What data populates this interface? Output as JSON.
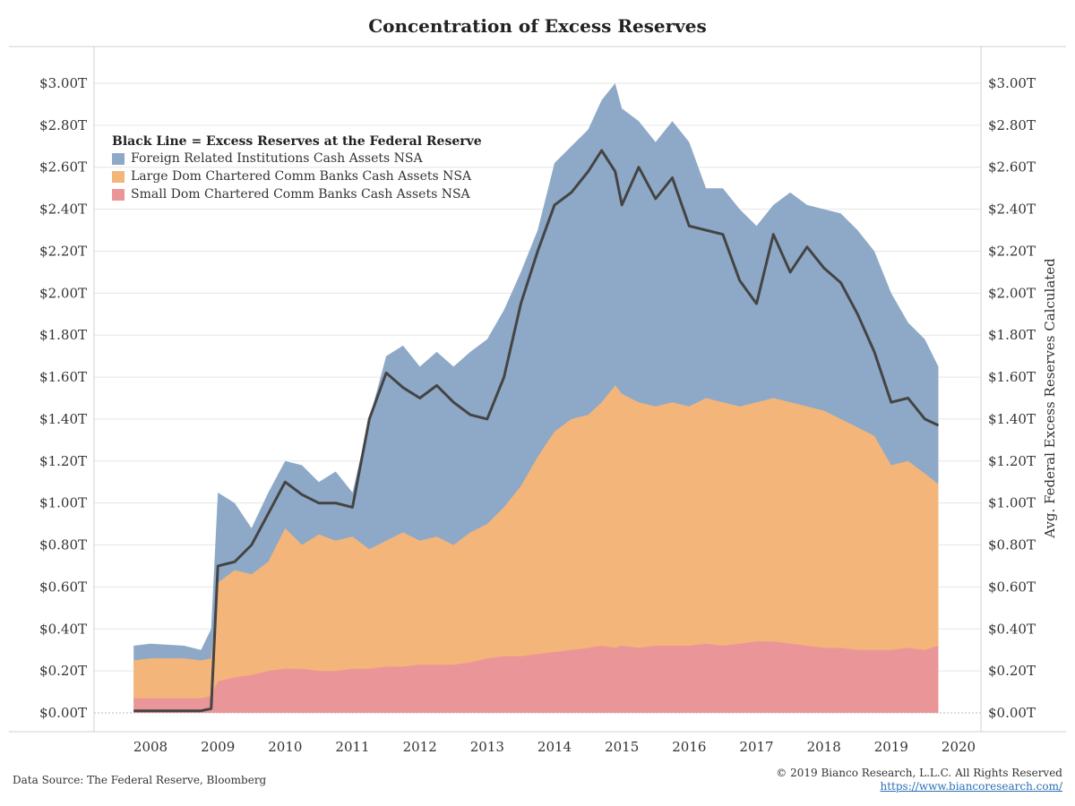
{
  "colors": {
    "foreign": "#8ea9c7",
    "large": "#f4b57a",
    "small": "#ea9698",
    "line": "#444444",
    "grid": "#e6e6e6"
  },
  "footer": {
    "source": "Data Source: The Federal Reserve, Bloomberg",
    "copyright": "© 2019 Bianco Research, L.L.C. All Rights Reserved",
    "url": "https://www.biancoresearch.com/"
  },
  "chart_data": {
    "type": "area",
    "title": "Concentration of Excess Reserves",
    "legend_title": "Black Line = Excess Reserves at the Federal Reserve",
    "legend_position": "top-left",
    "ylabel_right": "Avg. Federal Excess Reserves Calculated",
    "ylim": [
      0,
      3.1
    ],
    "xlim": [
      2007.5,
      2020.3
    ],
    "y_ticks": [
      "$0.00T",
      "$0.20T",
      "$0.40T",
      "$0.60T",
      "$0.80T",
      "$1.00T",
      "$1.20T",
      "$1.40T",
      "$1.60T",
      "$1.80T",
      "$2.00T",
      "$2.20T",
      "$2.40T",
      "$2.60T",
      "$2.80T",
      "$3.00T"
    ],
    "x_ticks": [
      "2008",
      "2009",
      "2010",
      "2011",
      "2012",
      "2013",
      "2014",
      "2015",
      "2016",
      "2017",
      "2018",
      "2019",
      "2020"
    ],
    "grid": true,
    "x": [
      2007.75,
      2008.0,
      2008.5,
      2008.75,
      2008.9,
      2009.0,
      2009.25,
      2009.5,
      2009.75,
      2010.0,
      2010.25,
      2010.5,
      2010.75,
      2011.0,
      2011.25,
      2011.5,
      2011.75,
      2012.0,
      2012.25,
      2012.5,
      2012.75,
      2013.0,
      2013.25,
      2013.5,
      2013.75,
      2014.0,
      2014.25,
      2014.5,
      2014.7,
      2014.9,
      2015.0,
      2015.25,
      2015.5,
      2015.75,
      2016.0,
      2016.25,
      2016.5,
      2016.75,
      2017.0,
      2017.25,
      2017.5,
      2017.75,
      2018.0,
      2018.25,
      2018.5,
      2018.75,
      2019.0,
      2019.25,
      2019.5,
      2019.7
    ],
    "series": [
      {
        "name": "Small Dom Chartered Comm Banks Cash Assets NSA",
        "values": [
          0.07,
          0.07,
          0.07,
          0.07,
          0.08,
          0.15,
          0.17,
          0.18,
          0.2,
          0.21,
          0.21,
          0.2,
          0.2,
          0.21,
          0.21,
          0.22,
          0.22,
          0.23,
          0.23,
          0.23,
          0.24,
          0.26,
          0.27,
          0.27,
          0.28,
          0.29,
          0.3,
          0.31,
          0.32,
          0.31,
          0.32,
          0.31,
          0.32,
          0.32,
          0.32,
          0.33,
          0.32,
          0.33,
          0.34,
          0.34,
          0.33,
          0.32,
          0.31,
          0.31,
          0.3,
          0.3,
          0.3,
          0.31,
          0.3,
          0.32
        ]
      },
      {
        "name": "Large Dom Chartered Comm Banks Cash Assets NSA",
        "values": [
          0.25,
          0.26,
          0.26,
          0.25,
          0.26,
          0.62,
          0.68,
          0.66,
          0.72,
          0.88,
          0.8,
          0.85,
          0.82,
          0.84,
          0.78,
          0.82,
          0.86,
          0.82,
          0.84,
          0.8,
          0.86,
          0.9,
          0.98,
          1.08,
          1.22,
          1.34,
          1.4,
          1.42,
          1.48,
          1.56,
          1.52,
          1.48,
          1.46,
          1.48,
          1.46,
          1.5,
          1.48,
          1.46,
          1.48,
          1.5,
          1.48,
          1.46,
          1.44,
          1.4,
          1.36,
          1.32,
          1.18,
          1.2,
          1.14,
          1.09
        ]
      },
      {
        "name": "Foreign Related Institutions Cash Assets NSA",
        "values": [
          0.32,
          0.33,
          0.32,
          0.3,
          0.4,
          1.05,
          1.0,
          0.88,
          1.05,
          1.2,
          1.18,
          1.1,
          1.15,
          1.05,
          1.4,
          1.7,
          1.75,
          1.65,
          1.72,
          1.65,
          1.72,
          1.78,
          1.92,
          2.1,
          2.3,
          2.62,
          2.7,
          2.78,
          2.92,
          3.0,
          2.88,
          2.82,
          2.72,
          2.82,
          2.72,
          2.5,
          2.5,
          2.4,
          2.32,
          2.42,
          2.48,
          2.42,
          2.4,
          2.38,
          2.3,
          2.2,
          2.0,
          1.86,
          1.78,
          1.65
        ]
      },
      {
        "name": "Excess Reserves at the Federal Reserve",
        "values": [
          0.01,
          0.01,
          0.01,
          0.01,
          0.02,
          0.7,
          0.72,
          0.8,
          0.95,
          1.1,
          1.04,
          1.0,
          1.0,
          0.98,
          1.4,
          1.62,
          1.55,
          1.5,
          1.56,
          1.48,
          1.42,
          1.4,
          1.6,
          1.95,
          2.2,
          2.42,
          2.48,
          2.58,
          2.68,
          2.58,
          2.42,
          2.6,
          2.45,
          2.55,
          2.32,
          2.3,
          2.28,
          2.06,
          1.95,
          2.28,
          2.1,
          2.22,
          2.12,
          2.05,
          1.9,
          1.72,
          1.48,
          1.5,
          1.4,
          1.37
        ]
      }
    ]
  }
}
